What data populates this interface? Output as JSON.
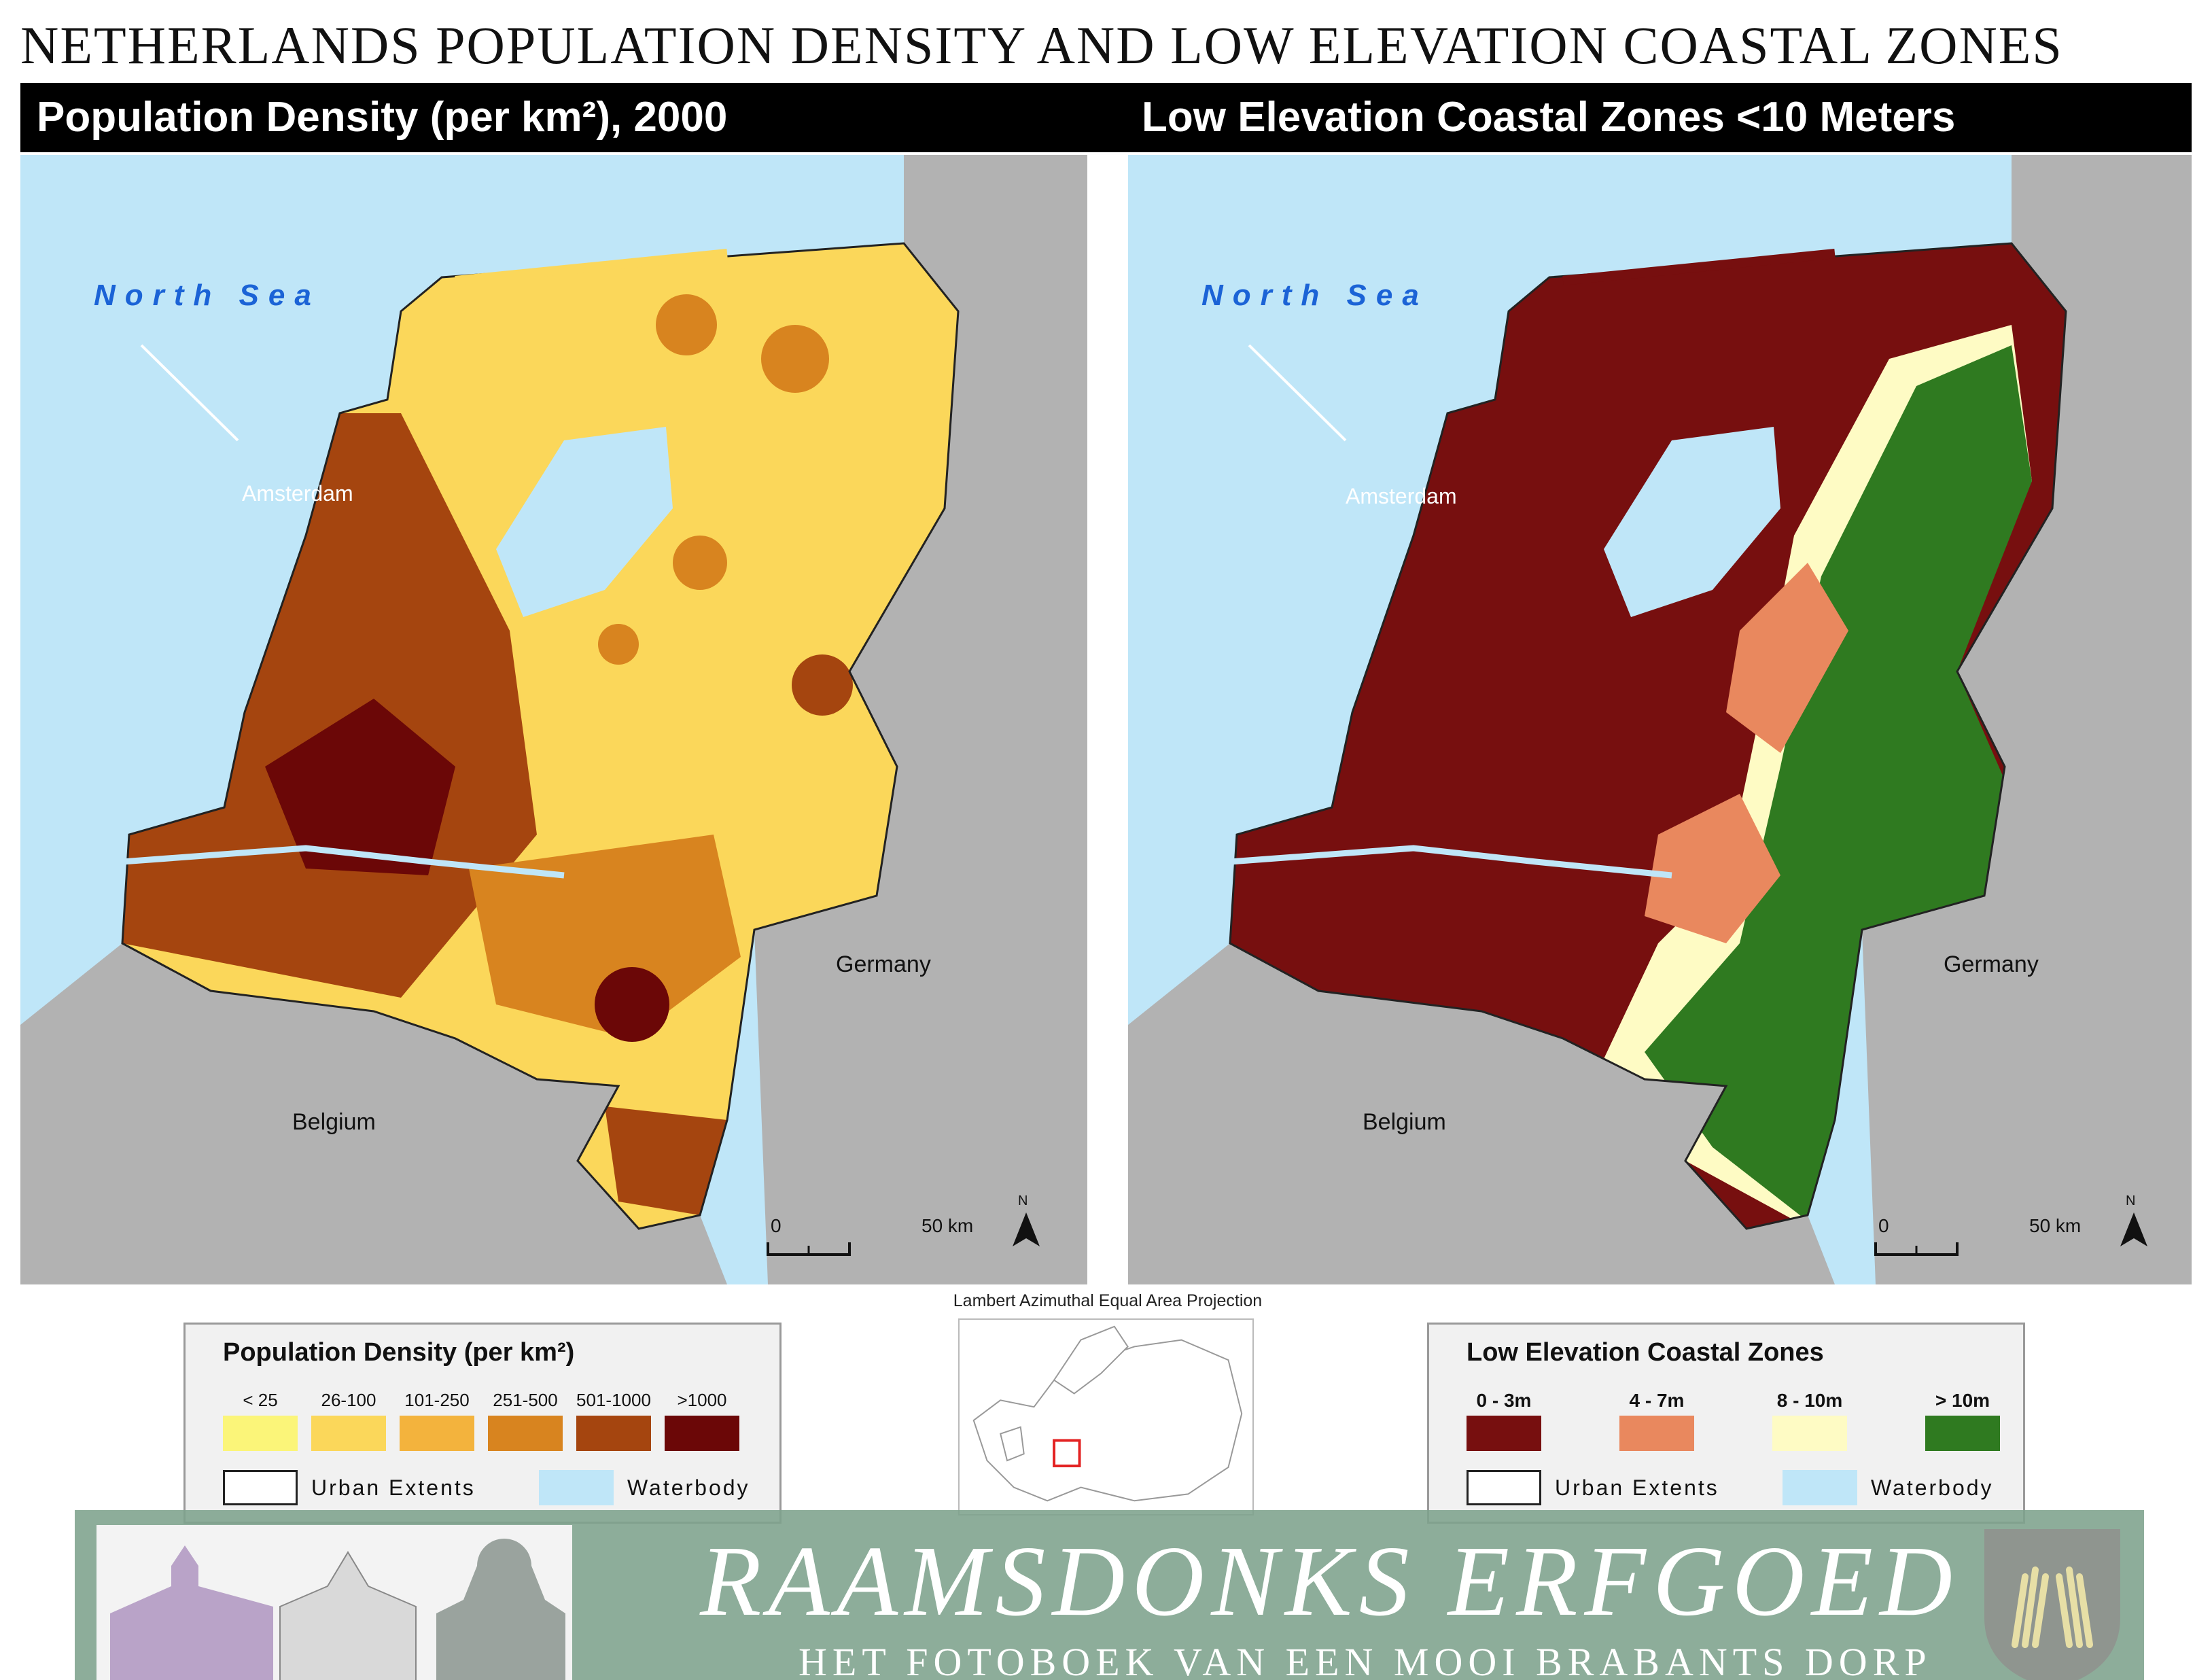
{
  "title": "NETHERLANDS POPULATION DENSITY AND LOW ELEVATION COASTAL ZONES",
  "panels": {
    "left": {
      "header": "Population Density (per km²), 2000",
      "sea_label": "North Sea",
      "city_label": "Amsterdam",
      "country_labels": [
        "Germany",
        "Belgium"
      ],
      "scale": {
        "start": "0",
        "end": "50 km"
      },
      "north": "N"
    },
    "right": {
      "header": "Low Elevation Coastal Zones <10 Meters",
      "sea_label": "North Sea",
      "city_label": "Amsterdam",
      "country_labels": [
        "Germany",
        "Belgium"
      ],
      "scale": {
        "start": "0",
        "end": "50 km"
      },
      "north": "N"
    }
  },
  "projection": "Lambert Azimuthal Equal Area Projection",
  "legend_population": {
    "title": "Population Density (per km²)",
    "classes": [
      {
        "label": "< 25",
        "color": "#fbf579"
      },
      {
        "label": "26-100",
        "color": "#fbd75a"
      },
      {
        "label": "101-250",
        "color": "#f3b33d"
      },
      {
        "label": "251-500",
        "color": "#d8841f"
      },
      {
        "label": "501-1000",
        "color": "#a5450f"
      },
      {
        "label": ">1000",
        "color": "#6b0707"
      }
    ],
    "urban": "Urban Extents",
    "water": "Waterbody"
  },
  "legend_elevation": {
    "title": "Low Elevation Coastal Zones",
    "classes": [
      {
        "label": "0 - 3m",
        "color": "#770f0f"
      },
      {
        "label": "4 - 7m",
        "color": "#e9885e"
      },
      {
        "label": "8 - 10m",
        "color": "#fefbc4"
      },
      {
        "label": "> 10m",
        "color": "#2f7a20"
      }
    ],
    "urban": "Urban Extents",
    "water": "Waterbody"
  },
  "colors": {
    "water": "#bfe6f8",
    "land_outside": "#b2b2b2",
    "header_bg": "#000000",
    "sea_label": "#1b63d6",
    "banner_bg": "#7da28c"
  },
  "banner": {
    "title": "RAAMSDONKS ERFGOED",
    "subtitle": "HET FOTOBOEK VAN EEN MOOI BRABANTS DORP"
  }
}
